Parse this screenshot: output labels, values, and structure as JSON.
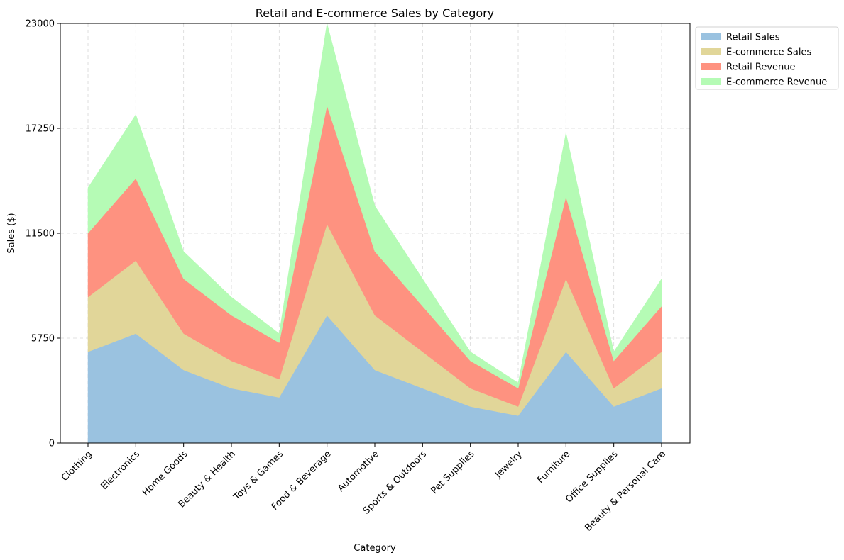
{
  "chart_data": {
    "type": "area",
    "stacked": true,
    "title": "Retail and E-commerce Sales by Category",
    "xlabel": "Category",
    "ylabel": "Sales ($)",
    "ylim": [
      0,
      23000
    ],
    "yticks": [
      0,
      5750,
      11500,
      17250,
      23000
    ],
    "grid": true,
    "legend_position": "outside-top-right",
    "categories": [
      "Clothing",
      "Electronics",
      "Home Goods",
      "Beauty & Health",
      "Toys & Games",
      "Food & Beverage",
      "Automotive",
      "Sports & Outdoors",
      "Pet Supplies",
      "Jewelry",
      "Furniture",
      "Office Supplies",
      "Beauty & Personal Care"
    ],
    "series": [
      {
        "name": "Retail Sales",
        "color": "#9ac2e0",
        "values": [
          5000,
          6000,
          4000,
          3000,
          2500,
          7000,
          4000,
          3000,
          2000,
          1500,
          5000,
          2000,
          3000
        ]
      },
      {
        "name": "E-commerce Sales",
        "color": "#e1d699",
        "values": [
          3000,
          4000,
          2000,
          1500,
          1000,
          5000,
          3000,
          2000,
          1000,
          500,
          4000,
          1000,
          2000
        ]
      },
      {
        "name": "Retail Revenue",
        "color": "#fe9280",
        "values": [
          3500,
          4500,
          3000,
          2500,
          2000,
          6500,
          3500,
          2500,
          1500,
          1000,
          4500,
          1500,
          2500
        ]
      },
      {
        "name": "E-commerce Revenue",
        "color": "#b5fbb5",
        "values": [
          2500,
          3500,
          1500,
          1000,
          500,
          4500,
          2500,
          1500,
          500,
          300,
          3500,
          500,
          1500
        ]
      }
    ]
  }
}
